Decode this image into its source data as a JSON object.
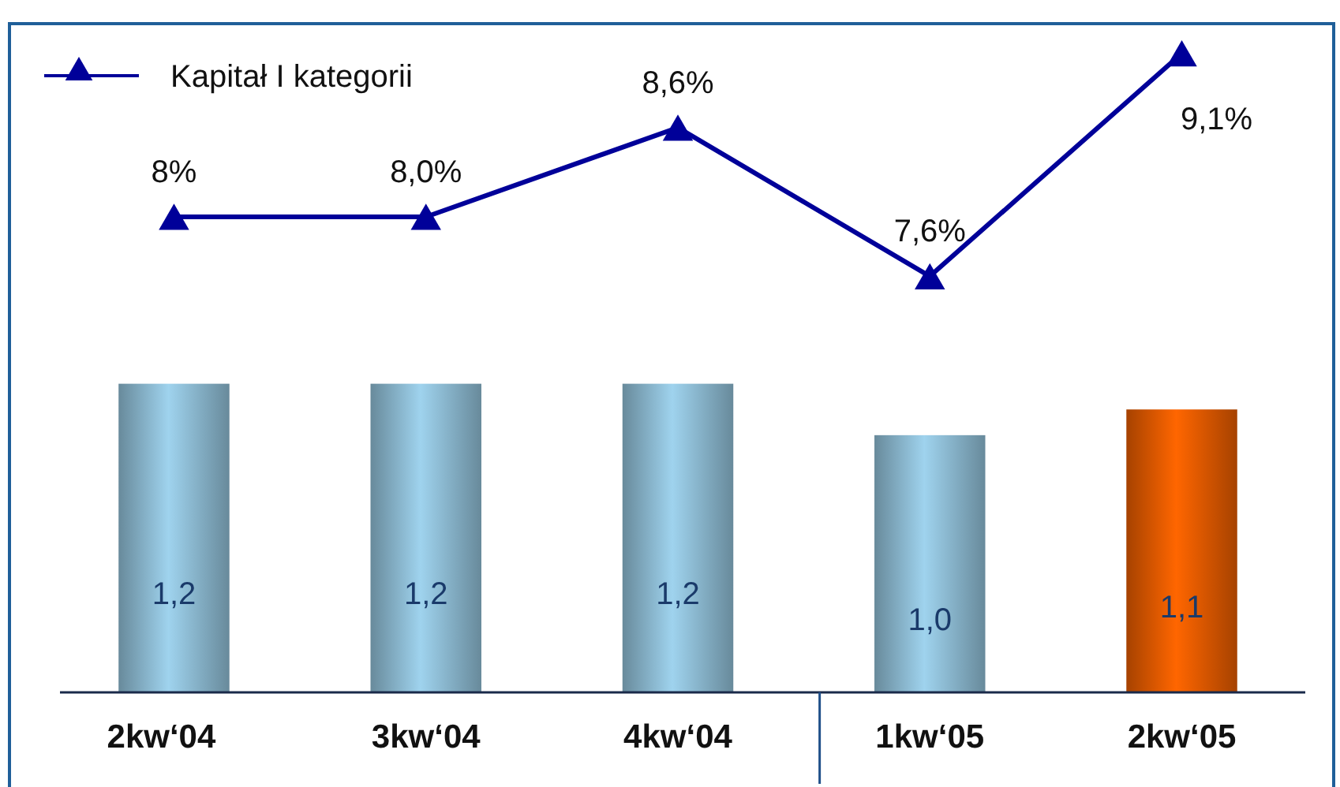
{
  "chart_data": {
    "type": "bar",
    "categories": [
      "2kw‘04",
      "3kw‘04",
      "4kw‘04",
      "1kw‘05",
      "2kw‘05"
    ],
    "series": [
      {
        "colors": [
          "#9fd3ee",
          "#9fd3ee",
          "#9fd3ee",
          "#9fd3ee",
          "#ff6600"
        ],
        "values": [
          1.2,
          1.2,
          1.2,
          1.0,
          1.1
        ],
        "value_labels": [
          "1,2",
          "1,2",
          "1,2",
          "1,0",
          "1,1"
        ]
      },
      {
        "type": "line",
        "name": "Kapitał I kategorii",
        "axis": "y2",
        "color": "#000099",
        "marker": "triangle",
        "values": [
          8.0,
          8.0,
          8.6,
          7.6,
          9.1
        ],
        "value_labels": [
          "8%",
          "8,0%",
          "8,6%",
          "7,6%",
          "9,1%"
        ]
      }
    ],
    "ylim": [
      0,
      2.6
    ],
    "y2lim": [
      4.8,
      9.3
    ],
    "tick_labels": "x",
    "grid": false,
    "legend": "top left"
  }
}
